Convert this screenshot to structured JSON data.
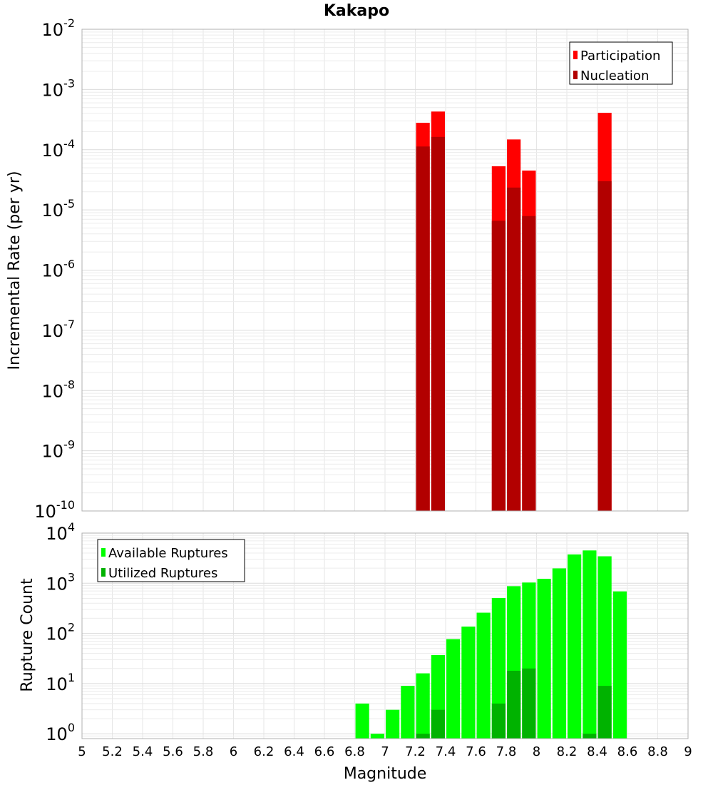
{
  "chart_data": [
    {
      "type": "bar",
      "title": "Kakapo",
      "xlabel": "",
      "ylabel": "Incremental Rate (per yr)",
      "y_scale": "log",
      "ylim": [
        1e-10,
        0.01
      ],
      "xlim": [
        5,
        9
      ],
      "grid": true,
      "legend_position": "top-right",
      "series": [
        {
          "name": "Participation",
          "color": "#ff0000",
          "x": [
            7.25,
            7.35,
            7.75,
            7.85,
            7.95,
            8.45
          ],
          "values": [
            0.00028,
            0.00043,
            5.3e-05,
            0.000148,
            4.5e-05,
            0.00041
          ]
        },
        {
          "name": "Nucleation",
          "color": "#b20000",
          "x": [
            7.25,
            7.35,
            7.75,
            7.85,
            7.95,
            8.45
          ],
          "values": [
            0.000113,
            0.000163,
            6.6e-06,
            2.35e-05,
            7.9e-06,
            3e-05
          ]
        }
      ],
      "y_ticks": [
        {
          "base": "10",
          "exp": "-2"
        },
        {
          "base": "10",
          "exp": "-3"
        },
        {
          "base": "10",
          "exp": "-4"
        },
        {
          "base": "10",
          "exp": "-5"
        },
        {
          "base": "10",
          "exp": "-6"
        },
        {
          "base": "10",
          "exp": "-7"
        },
        {
          "base": "10",
          "exp": "-8"
        },
        {
          "base": "10",
          "exp": "-9"
        },
        {
          "base": "10",
          "exp": "-10"
        }
      ]
    },
    {
      "type": "bar",
      "title": "",
      "xlabel": "Magnitude",
      "ylabel": "Rupture Count",
      "y_scale": "log",
      "ylim": [
        0.8,
        10000
      ],
      "xlim": [
        5,
        9
      ],
      "grid": true,
      "legend_position": "top-left",
      "series": [
        {
          "name": "Available Ruptures",
          "color": "#00ff00",
          "x": [
            6.85,
            6.95,
            7.05,
            7.15,
            7.25,
            7.35,
            7.45,
            7.55,
            7.65,
            7.75,
            7.85,
            7.95,
            8.05,
            8.15,
            8.25,
            8.35,
            8.45,
            8.55
          ],
          "values": [
            4,
            1,
            3,
            9,
            16,
            37,
            77,
            137,
            259,
            509,
            875,
            1034,
            1226,
            1979,
            3753,
            4509,
            3448,
            688
          ]
        },
        {
          "name": "Utilized Ruptures",
          "color": "#00b200",
          "x": [
            7.25,
            7.35,
            7.75,
            7.85,
            7.95,
            8.35,
            8.45
          ],
          "values": [
            1,
            3,
            4,
            18,
            20,
            1,
            9
          ]
        }
      ],
      "y_ticks": [
        {
          "base": "10",
          "exp": "4"
        },
        {
          "base": "10",
          "exp": "3"
        },
        {
          "base": "10",
          "exp": "2"
        },
        {
          "base": "10",
          "exp": "1"
        },
        {
          "base": "10",
          "exp": "0"
        }
      ],
      "x_ticks": [
        "5",
        "5.2",
        "5.4",
        "5.6",
        "5.8",
        "6",
        "6.2",
        "6.4",
        "6.6",
        "6.8",
        "7",
        "7.2",
        "7.4",
        "7.6",
        "7.8",
        "8",
        "8.2",
        "8.4",
        "8.6",
        "8.8",
        "9"
      ]
    }
  ]
}
